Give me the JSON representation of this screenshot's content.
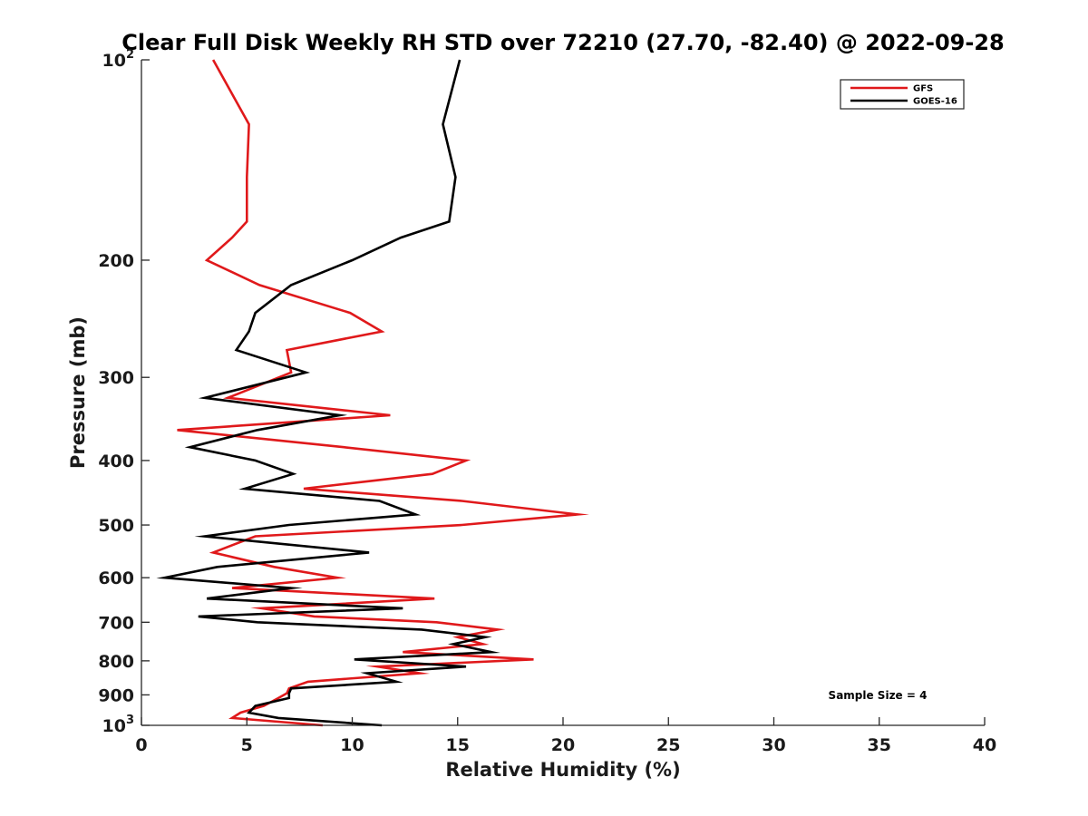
{
  "chart_data": {
    "type": "line",
    "title": "Clear Full Disk Weekly RH STD over 72210 (27.70, -82.40) @ 2022-09-28",
    "xlabel": "Relative Humidity (%)",
    "ylabel": "Pressure (mb)",
    "xlim": [
      0,
      40
    ],
    "ylim": [
      100,
      1000
    ],
    "y_scale": "log",
    "y_reversed": true,
    "xticks": [
      "0",
      "5",
      "10",
      "15",
      "20",
      "25",
      "30",
      "35",
      "40"
    ],
    "yticks": [
      {
        "value": 100,
        "base": "10",
        "exp": "2"
      },
      {
        "value": 200,
        "label": "200"
      },
      {
        "value": 300,
        "label": "300"
      },
      {
        "value": 400,
        "label": "400"
      },
      {
        "value": 500,
        "label": "500"
      },
      {
        "value": 600,
        "label": "600"
      },
      {
        "value": 700,
        "label": "700"
      },
      {
        "value": 800,
        "label": "800"
      },
      {
        "value": 900,
        "label": "900"
      },
      {
        "value": 1000,
        "base": "10",
        "exp": "3"
      }
    ],
    "grid": false,
    "legend_position": "top-right",
    "annotation": "Sample Size = 4",
    "series": [
      {
        "name": "GFS",
        "color": "#e0191b",
        "points": [
          [
            3.4,
            100
          ],
          [
            5.1,
            125
          ],
          [
            5.0,
            150
          ],
          [
            5.0,
            175
          ],
          [
            4.3,
            185
          ],
          [
            3.1,
            200
          ],
          [
            5.6,
            218
          ],
          [
            9.9,
            240
          ],
          [
            11.4,
            256
          ],
          [
            6.9,
            273
          ],
          [
            7.1,
            295
          ],
          [
            4.1,
            322
          ],
          [
            11.8,
            342
          ],
          [
            1.7,
            360
          ],
          [
            9.6,
            382
          ],
          [
            15.4,
            400
          ],
          [
            13.8,
            419
          ],
          [
            7.7,
            441
          ],
          [
            15.2,
            460
          ],
          [
            20.7,
            482
          ],
          [
            15.2,
            500
          ],
          [
            5.4,
            520
          ],
          [
            3.4,
            550
          ],
          [
            6.3,
            578
          ],
          [
            9.3,
            600
          ],
          [
            4.3,
            622
          ],
          [
            13.9,
            645
          ],
          [
            5.7,
            667
          ],
          [
            8.2,
            686
          ],
          [
            14.0,
            700
          ],
          [
            16.9,
            718
          ],
          [
            15.0,
            737
          ],
          [
            16.2,
            755
          ],
          [
            12.4,
            776
          ],
          [
            18.6,
            796
          ],
          [
            11.2,
            816
          ],
          [
            13.2,
            835
          ],
          [
            7.9,
            860
          ],
          [
            7.0,
            880
          ],
          [
            6.9,
            895
          ],
          [
            6.5,
            910
          ],
          [
            5.8,
            935
          ],
          [
            4.7,
            957
          ],
          [
            4.3,
            975
          ],
          [
            8.6,
            1000
          ]
        ]
      },
      {
        "name": "GOES-16",
        "color": "#000000",
        "points": [
          [
            15.1,
            100
          ],
          [
            14.3,
            125
          ],
          [
            14.9,
            150
          ],
          [
            14.6,
            175
          ],
          [
            12.3,
            185
          ],
          [
            10.0,
            200
          ],
          [
            7.1,
            218
          ],
          [
            5.4,
            240
          ],
          [
            5.1,
            256
          ],
          [
            4.5,
            273
          ],
          [
            7.8,
            295
          ],
          [
            3.0,
            322
          ],
          [
            9.4,
            342
          ],
          [
            5.5,
            360
          ],
          [
            2.3,
            382
          ],
          [
            5.4,
            400
          ],
          [
            7.2,
            419
          ],
          [
            4.9,
            441
          ],
          [
            11.3,
            460
          ],
          [
            13.0,
            482
          ],
          [
            7.0,
            500
          ],
          [
            3.0,
            520
          ],
          [
            10.8,
            550
          ],
          [
            3.6,
            578
          ],
          [
            1.1,
            600
          ],
          [
            7.1,
            622
          ],
          [
            3.1,
            645
          ],
          [
            12.4,
            667
          ],
          [
            2.7,
            686
          ],
          [
            5.5,
            700
          ],
          [
            13.3,
            718
          ],
          [
            16.3,
            737
          ],
          [
            14.8,
            755
          ],
          [
            16.6,
            776
          ],
          [
            10.1,
            796
          ],
          [
            15.4,
            816
          ],
          [
            10.7,
            835
          ],
          [
            12.1,
            860
          ],
          [
            7.1,
            880
          ],
          [
            7.0,
            895
          ],
          [
            7.0,
            910
          ],
          [
            5.4,
            935
          ],
          [
            5.1,
            957
          ],
          [
            6.5,
            975
          ],
          [
            11.4,
            1000
          ]
        ]
      }
    ]
  }
}
